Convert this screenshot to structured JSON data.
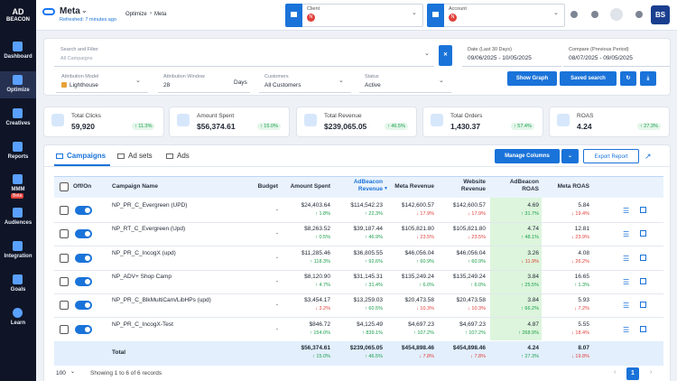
{
  "sidebar": {
    "logo": [
      "AD",
      "BEACON"
    ],
    "nav": [
      {
        "label": "Dashboard"
      },
      {
        "label": "Optimize"
      },
      {
        "label": "Creatives"
      },
      {
        "label": "Reports"
      },
      {
        "label": "MMM",
        "badge": "Beta"
      },
      {
        "label": "Audiences"
      },
      {
        "label": "Integration"
      },
      {
        "label": "Goals"
      },
      {
        "label": "Learn"
      }
    ]
  },
  "topbar": {
    "platform": "Meta",
    "refreshed": "Refreshed: 7 minutes ago",
    "breadcrumb": [
      "Optimize",
      "Meta"
    ],
    "client": {
      "label": "Client",
      "avatar": "N"
    },
    "account": {
      "label": "Account",
      "avatar": "N"
    },
    "user": "BS"
  },
  "filters": {
    "search": {
      "label": "Search and Filter",
      "placeholder": "All Campaigns"
    },
    "date": {
      "label": "Date (Last 30 Days)",
      "value": "09/06/2025 - 10/05/2025"
    },
    "compare": {
      "label": "Compare (Previous Period)",
      "value": "08/07/2025 - 09/05/2025"
    },
    "attribution_model": {
      "label": "Attribution Model",
      "value": "Lighthouse"
    },
    "attribution_window": {
      "label": "Attribution Window",
      "value": "28",
      "unit": "Days"
    },
    "customers": {
      "label": "Customers",
      "value": "All Customers"
    },
    "status": {
      "label": "Status",
      "value": "Active"
    },
    "buttons": [
      "Show Graph",
      "Saved search"
    ]
  },
  "kpis": [
    {
      "label": "Total Clicks",
      "value": "59,920",
      "change": "↑ 11.3%"
    },
    {
      "label": "Amount Spent",
      "value": "$56,374.61",
      "change": "↑ 15.0%"
    },
    {
      "label": "Total Revenue",
      "value": "$239,065.05",
      "change": "↑ 46.5%"
    },
    {
      "label": "Total Orders",
      "value": "1,430.37",
      "change": "↑ 57.4%"
    },
    {
      "label": "ROAS",
      "value": "4.24",
      "change": "↑ 27.3%"
    }
  ],
  "tabs": [
    "Campaigns",
    "Ad sets",
    "Ads"
  ],
  "actions": {
    "manage": "Manage Columns",
    "export": "Export Report"
  },
  "table": {
    "headers": {
      "toggle": "Off/On",
      "name": "Campaign Name",
      "budget": "Budget",
      "metrics": [
        "Amount Spent",
        "AdBeacon Revenue",
        "Meta Revenue",
        "Website Revenue",
        "AdBeacon ROAS",
        "Meta ROAS"
      ]
    },
    "rows": [
      {
        "name": "NP_PR_C_Evergreen (UPD)",
        "budget": "-",
        "cells": [
          {
            "value": "$24,403.64",
            "change": "↑ 1.8%"
          },
          {
            "value": "$114,542.23",
            "change": "↑ 22.3%"
          },
          {
            "value": "$142,600.57",
            "change": "↓ 17.9%"
          },
          {
            "value": "$142,600.57",
            "change": "↓ 17.9%"
          },
          {
            "value": "4.69",
            "change": "↑ 31.7%"
          },
          {
            "value": "5.84",
            "change": "↓ 19.4%"
          }
        ]
      },
      {
        "name": "NP_RT_C_Evergreen (Upd)",
        "budget": "-",
        "cells": [
          {
            "value": "$8,263.52",
            "change": "↑ 0.5%"
          },
          {
            "value": "$39,187.44",
            "change": "↑ 46.9%"
          },
          {
            "value": "$105,821.80",
            "change": "↓ 23.5%"
          },
          {
            "value": "$105,821.80",
            "change": "↓ 23.5%"
          },
          {
            "value": "4.74",
            "change": "↑ 48.1%"
          },
          {
            "value": "12.81",
            "change": "↓ 23.9%"
          }
        ]
      },
      {
        "name": "NP_PR_C_IncogX (upd)",
        "budget": "-",
        "cells": [
          {
            "value": "$11,285.46",
            "change": "↑ 118.3%"
          },
          {
            "value": "$36,805.55",
            "change": "↑ 92.6%"
          },
          {
            "value": "$46,056.04",
            "change": "↑ 60.9%"
          },
          {
            "value": "$46,056.04",
            "change": "↑ 60.9%"
          },
          {
            "value": "3.26",
            "change": "↓ 11.9%"
          },
          {
            "value": "4.08",
            "change": "↓ 26.2%"
          }
        ]
      },
      {
        "name": "NP_ADV+ Shop Camp",
        "budget": "-",
        "cells": [
          {
            "value": "$8,120.90",
            "change": "↑ 4.7%"
          },
          {
            "value": "$31,145.31",
            "change": "↑ 31.4%"
          },
          {
            "value": "$135,249.24",
            "change": "↑ 6.0%"
          },
          {
            "value": "$135,249.24",
            "change": "↑ 6.0%"
          },
          {
            "value": "3.84",
            "change": "↑ 25.5%"
          },
          {
            "value": "16.65",
            "change": "↑ 1.3%"
          }
        ]
      },
      {
        "name": "NP_PR_C_BlkMultiCam/LibHPs (upd)",
        "budget": "-",
        "cells": [
          {
            "value": "$3,454.17",
            "change": "↓ 3.2%"
          },
          {
            "value": "$13,259.03",
            "change": "↑ 60.5%"
          },
          {
            "value": "$20,473.58",
            "change": "↓ 10.3%"
          },
          {
            "value": "$20,473.58",
            "change": "↓ 10.3%"
          },
          {
            "value": "3.84",
            "change": "↑ 66.2%"
          },
          {
            "value": "5.93",
            "change": "↓ 7.2%"
          }
        ]
      },
      {
        "name": "NP_PR_C_IncogX-Test",
        "budget": "-",
        "cells": [
          {
            "value": "$846.72",
            "change": "↑ 154.0%"
          },
          {
            "value": "$4,125.49",
            "change": "↑ 839.1%"
          },
          {
            "value": "$4,697.23",
            "change": "↑ 107.2%"
          },
          {
            "value": "$4,697.23",
            "change": "↑ 107.2%"
          },
          {
            "value": "4.87",
            "change": "↑ 268.9%"
          },
          {
            "value": "5.55",
            "change": "↓ 18.4%"
          }
        ]
      }
    ],
    "total": {
      "label": "Total",
      "cells": [
        {
          "value": "$56,374.61",
          "change": "↑ 15.0%"
        },
        {
          "value": "$239,065.05",
          "change": "↑ 46.5%"
        },
        {
          "value": "$454,898.46",
          "change": "↓ 7.8%"
        },
        {
          "value": "$454,898.46",
          "change": "↓ 7.8%"
        },
        {
          "value": "4.24",
          "change": "↑ 27.3%"
        },
        {
          "value": "8.07",
          "change": "↓ 19.8%"
        }
      ]
    }
  },
  "footer": {
    "page_size": "100",
    "info": "Showing 1 to 6 of 6 records",
    "page": "1"
  }
}
